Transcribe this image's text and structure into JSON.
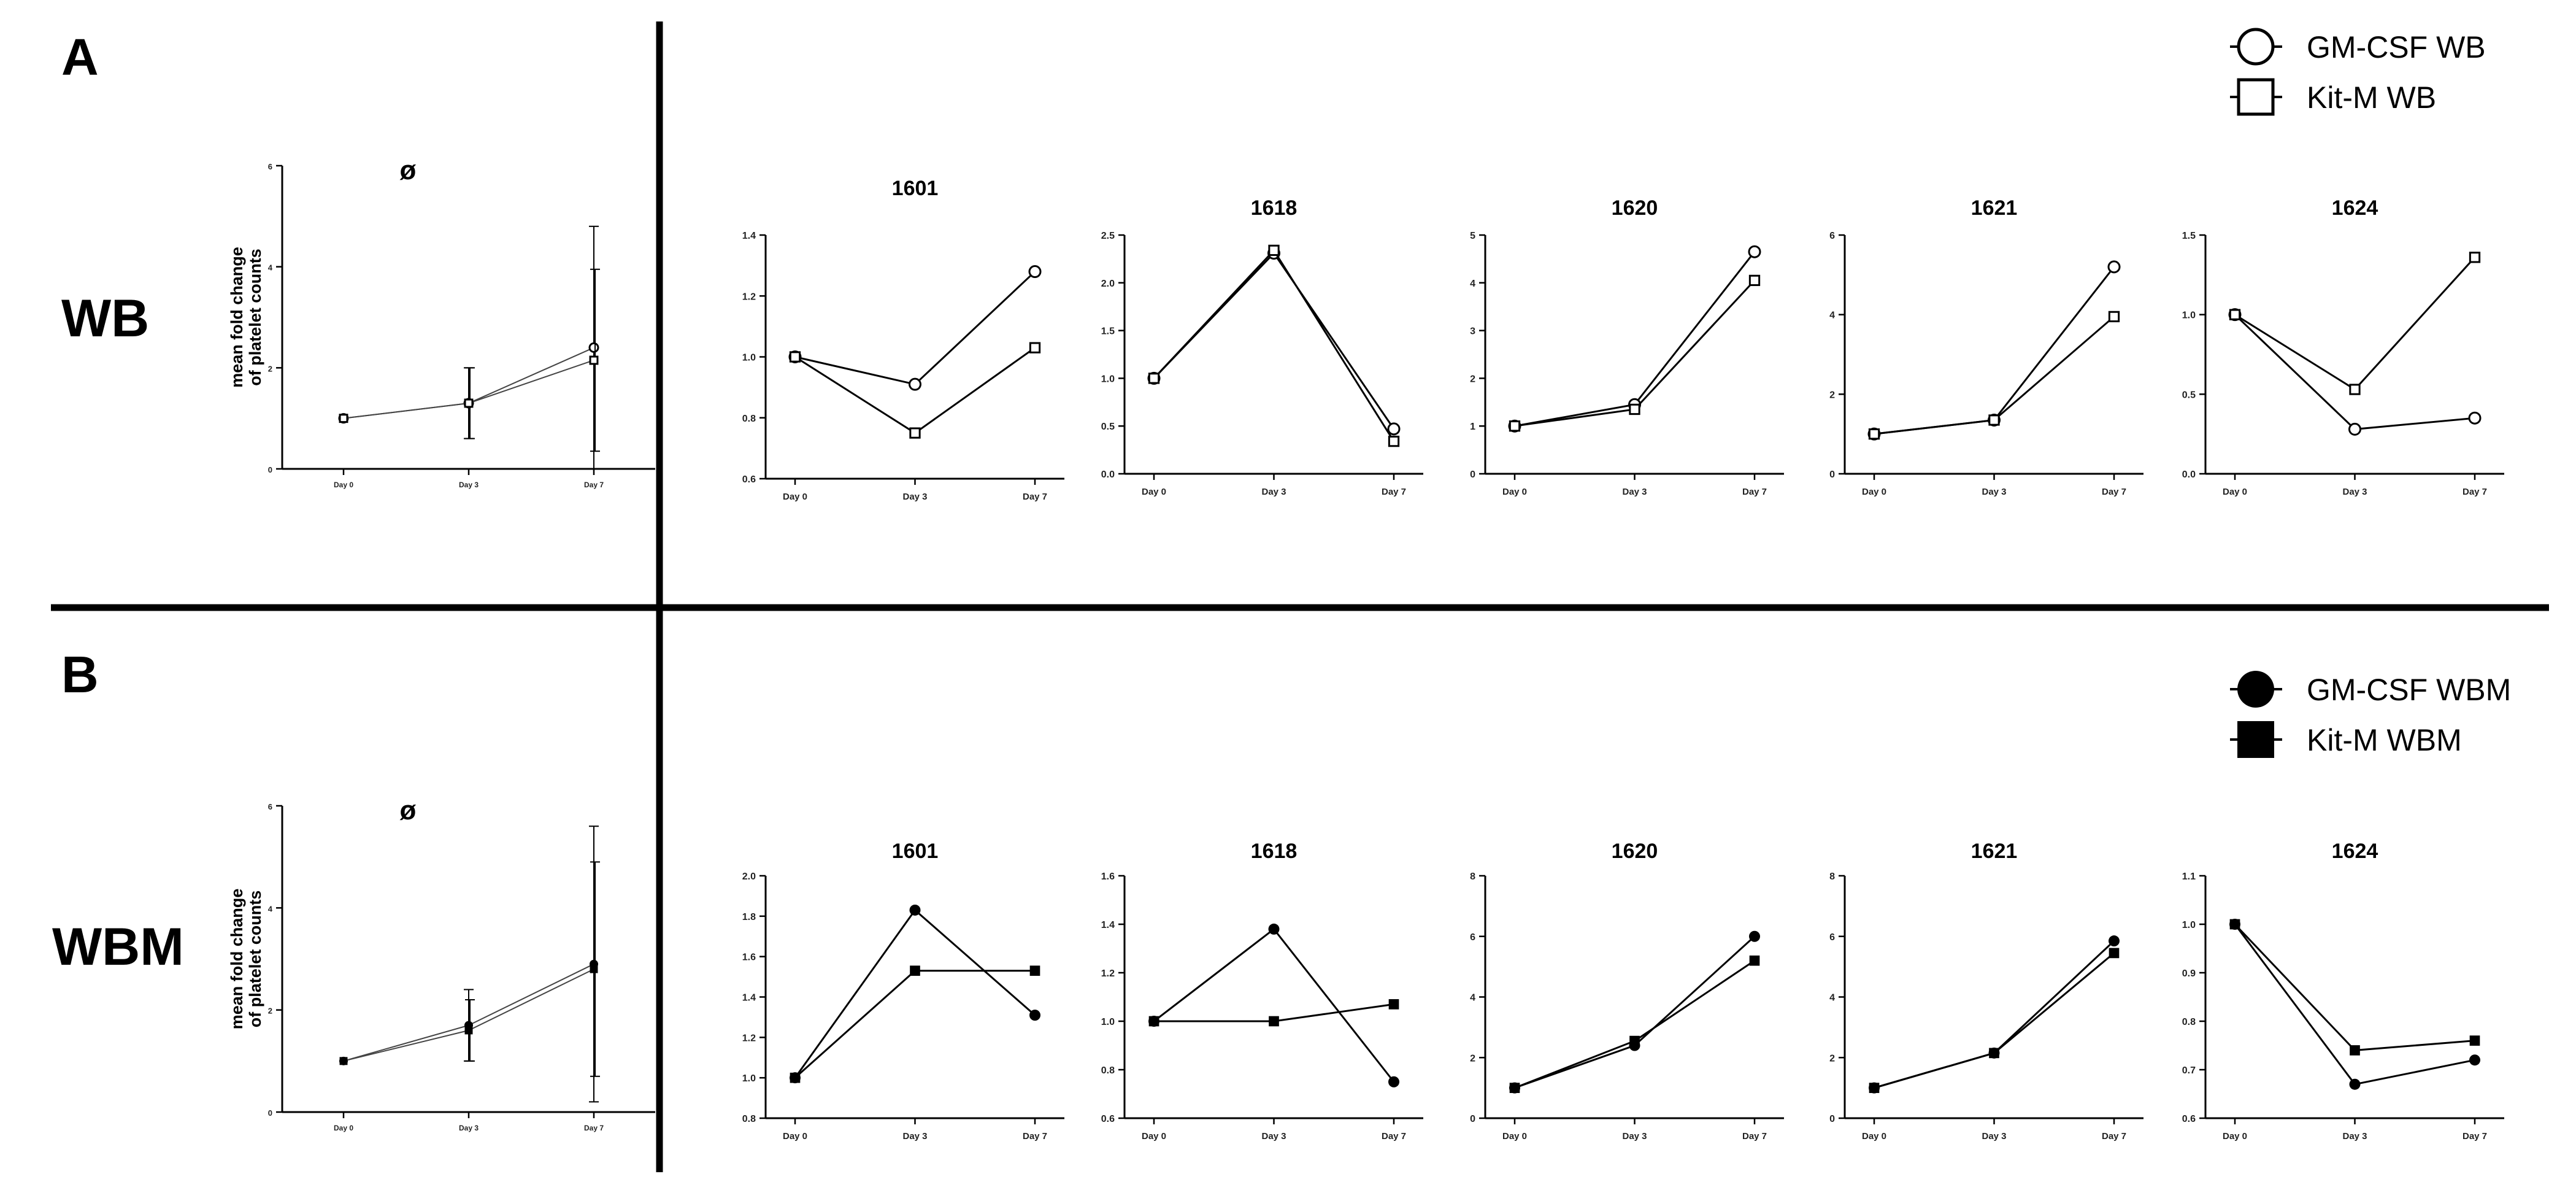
{
  "panels": {
    "A": {
      "label": "A",
      "row_label": "WB",
      "legend": [
        {
          "label": "GM-CSF WB",
          "marker": "circle-open-icon"
        },
        {
          "label": "Kit-M WB",
          "marker": "square-open-icon"
        }
      ]
    },
    "B": {
      "label": "B",
      "row_label": "WBM",
      "legend": [
        {
          "label": "GM-CSF WBM",
          "marker": "circle-filled-icon"
        },
        {
          "label": "Kit-M WBM",
          "marker": "square-filled-icon"
        }
      ]
    }
  },
  "chart_data": [
    {
      "id": "A_mean",
      "panel": "A",
      "type": "line",
      "title": "ø",
      "ylabel": "mean fold change\nof platelet counts",
      "categories": [
        "Day 0",
        "Day 3",
        "Day 7"
      ],
      "ylim": [
        0,
        6
      ],
      "yticks": [
        0,
        2,
        4,
        6
      ],
      "filled": false,
      "series": [
        {
          "marker": "circle",
          "values": [
            1,
            1.3,
            2.4
          ],
          "err": [
            0,
            0.7,
            2.4
          ]
        },
        {
          "marker": "square",
          "values": [
            1,
            1.3,
            2.15
          ],
          "err": [
            0,
            0.7,
            1.8
          ]
        }
      ]
    },
    {
      "id": "A_1601",
      "panel": "A",
      "type": "line",
      "title": "1601",
      "categories": [
        "Day 0",
        "Day 3",
        "Day 7"
      ],
      "ylim": [
        0.6,
        1.4
      ],
      "yticks": [
        "0.6",
        "0.8",
        "1.0",
        "1.2",
        "1.4"
      ],
      "filled": false,
      "series": [
        {
          "marker": "circle",
          "values": [
            1.0,
            0.91,
            1.28
          ]
        },
        {
          "marker": "square",
          "values": [
            1.0,
            0.75,
            1.03
          ]
        }
      ]
    },
    {
      "id": "A_1618",
      "panel": "A",
      "type": "line",
      "title": "1618",
      "categories": [
        "Day 0",
        "Day 3",
        "Day 7"
      ],
      "ylim": [
        0,
        2.5
      ],
      "yticks": [
        "0.0",
        "0.5",
        "1.0",
        "1.5",
        "2.0",
        "2.5"
      ],
      "filled": false,
      "series": [
        {
          "marker": "circle",
          "values": [
            1.0,
            2.31,
            0.47
          ]
        },
        {
          "marker": "square",
          "values": [
            1.0,
            2.34,
            0.34
          ]
        }
      ]
    },
    {
      "id": "A_1620",
      "panel": "A",
      "type": "line",
      "title": "1620",
      "categories": [
        "Day 0",
        "Day 3",
        "Day 7"
      ],
      "ylim": [
        0,
        5
      ],
      "yticks": [
        "0",
        "1",
        "2",
        "3",
        "4",
        "5"
      ],
      "filled": false,
      "series": [
        {
          "marker": "circle",
          "values": [
            1.0,
            1.45,
            4.65
          ]
        },
        {
          "marker": "square",
          "values": [
            1.0,
            1.35,
            4.05
          ]
        }
      ]
    },
    {
      "id": "A_1621",
      "panel": "A",
      "type": "line",
      "title": "1621",
      "categories": [
        "Day 0",
        "Day 3",
        "Day 7"
      ],
      "ylim": [
        0,
        6
      ],
      "yticks": [
        "0",
        "2",
        "4",
        "6"
      ],
      "filled": false,
      "series": [
        {
          "marker": "circle",
          "values": [
            1.0,
            1.35,
            5.2
          ]
        },
        {
          "marker": "square",
          "values": [
            1.0,
            1.35,
            3.95
          ]
        }
      ]
    },
    {
      "id": "A_1624",
      "panel": "A",
      "type": "line",
      "title": "1624",
      "categories": [
        "Day 0",
        "Day 3",
        "Day 7"
      ],
      "ylim": [
        0,
        1.5
      ],
      "yticks": [
        "0.0",
        "0.5",
        "1.0",
        "1.5"
      ],
      "filled": false,
      "series": [
        {
          "marker": "circle",
          "values": [
            1.0,
            0.28,
            0.35
          ]
        },
        {
          "marker": "square",
          "values": [
            1.0,
            0.53,
            1.36
          ]
        }
      ]
    },
    {
      "id": "B_mean",
      "panel": "B",
      "type": "line",
      "title": "ø",
      "ylabel": "mean fold change\nof platelet counts",
      "categories": [
        "Day 0",
        "Day 3",
        "Day 7"
      ],
      "ylim": [
        0,
        6
      ],
      "yticks": [
        0,
        2,
        4,
        6
      ],
      "filled": true,
      "series": [
        {
          "marker": "circle",
          "values": [
            1,
            1.7,
            2.9
          ],
          "err": [
            0,
            0.7,
            2.7
          ]
        },
        {
          "marker": "square",
          "values": [
            1,
            1.6,
            2.8
          ],
          "err": [
            0,
            0.6,
            2.1
          ]
        }
      ]
    },
    {
      "id": "B_1601",
      "panel": "B",
      "type": "line",
      "title": "1601",
      "categories": [
        "Day 0",
        "Day 3",
        "Day 7"
      ],
      "ylim": [
        0.8,
        2.0
      ],
      "yticks": [
        "0.8",
        "1.0",
        "1.2",
        "1.4",
        "1.6",
        "1.8",
        "2.0"
      ],
      "filled": true,
      "series": [
        {
          "marker": "circle",
          "values": [
            1.0,
            1.83,
            1.31
          ]
        },
        {
          "marker": "square",
          "values": [
            1.0,
            1.53,
            1.53
          ]
        }
      ]
    },
    {
      "id": "B_1618",
      "panel": "B",
      "type": "line",
      "title": "1618",
      "categories": [
        "Day 0",
        "Day 3",
        "Day 7"
      ],
      "ylim": [
        0.6,
        1.6
      ],
      "yticks": [
        "0.6",
        "0.8",
        "1.0",
        "1.2",
        "1.4",
        "1.6"
      ],
      "filled": true,
      "series": [
        {
          "marker": "circle",
          "values": [
            1.0,
            1.38,
            0.75
          ]
        },
        {
          "marker": "square",
          "values": [
            1.0,
            1.0,
            1.07
          ]
        }
      ]
    },
    {
      "id": "B_1620",
      "panel": "B",
      "type": "line",
      "title": "1620",
      "categories": [
        "Day 0",
        "Day 3",
        "Day 7"
      ],
      "ylim": [
        0,
        8
      ],
      "yticks": [
        "0",
        "2",
        "4",
        "6",
        "8"
      ],
      "filled": true,
      "series": [
        {
          "marker": "circle",
          "values": [
            1.0,
            2.4,
            6.0
          ]
        },
        {
          "marker": "square",
          "values": [
            1.0,
            2.55,
            5.2
          ]
        }
      ]
    },
    {
      "id": "B_1621",
      "panel": "B",
      "type": "line",
      "title": "1621",
      "categories": [
        "Day 0",
        "Day 3",
        "Day 7"
      ],
      "ylim": [
        0,
        8
      ],
      "yticks": [
        "0",
        "2",
        "4",
        "6",
        "8"
      ],
      "filled": true,
      "series": [
        {
          "marker": "circle",
          "values": [
            1.0,
            2.15,
            5.85
          ]
        },
        {
          "marker": "square",
          "values": [
            1.0,
            2.15,
            5.45
          ]
        }
      ]
    },
    {
      "id": "B_1624",
      "panel": "B",
      "type": "line",
      "title": "1624",
      "categories": [
        "Day 0",
        "Day 3",
        "Day 7"
      ],
      "ylim": [
        0.6,
        1.1
      ],
      "yticks": [
        "0.6",
        "0.7",
        "0.8",
        "0.9",
        "1.0",
        "1.1"
      ],
      "filled": true,
      "series": [
        {
          "marker": "circle",
          "values": [
            1.0,
            0.67,
            0.72
          ]
        },
        {
          "marker": "square",
          "values": [
            1.0,
            0.74,
            0.76
          ]
        }
      ]
    }
  ]
}
